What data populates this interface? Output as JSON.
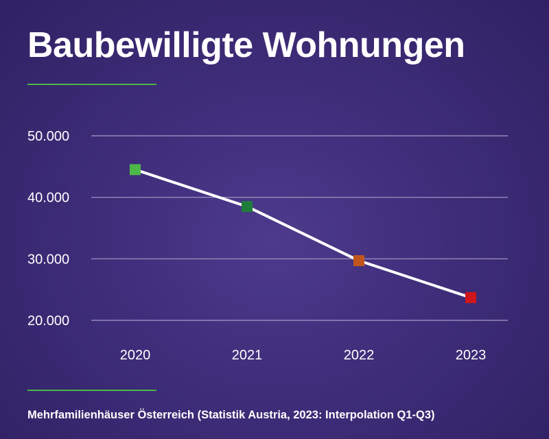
{
  "header": {
    "title": "Baubewilligte Wohnungen"
  },
  "footer": {
    "source": "Mehrfamilienhäuser Österreich (Statistik Austria, 2023: Interpolation Q1-Q3)"
  },
  "chart_data": {
    "type": "line",
    "title": "Baubewilligte Wohnungen",
    "xlabel": "",
    "ylabel": "",
    "categories": [
      "2020",
      "2021",
      "2022",
      "2023"
    ],
    "series": [
      {
        "values": [
          44500,
          38500,
          29700,
          23700
        ],
        "line_color": "#ffffff",
        "marker_colors": [
          "#4db848",
          "#1e7d3a",
          "#c0561c",
          "#d0161a"
        ]
      }
    ],
    "ylim": [
      20000,
      50000
    ],
    "yticks": [
      50000,
      40000,
      30000,
      20000
    ],
    "ytick_labels": [
      "50.000",
      "40.000",
      "30.000",
      "20.000"
    ],
    "grid": true,
    "grid_color": "#a99cc9",
    "legend": "none"
  }
}
